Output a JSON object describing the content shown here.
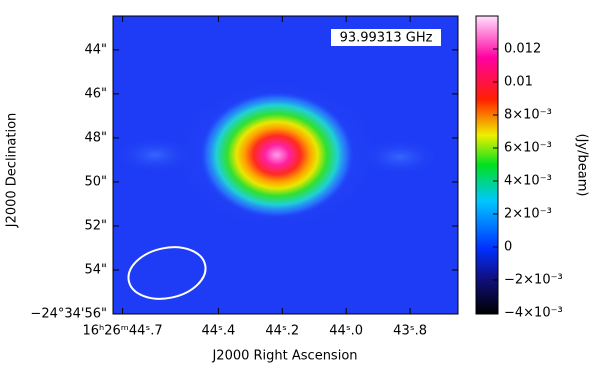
{
  "chart_data": {
    "type": "image",
    "annotation": "93.99313 GHz",
    "x_label": "J2000 Right Ascension",
    "y_label": "J2000 Declination",
    "xlim": [
      44.73,
      43.65
    ],
    "xticks": [
      {
        "value": 44.7,
        "label": "16ʰ26ᵐ44ˢ.7"
      },
      {
        "value": 44.4,
        "label": "44ˢ.4"
      },
      {
        "value": 44.2,
        "label": "44ˢ.2"
      },
      {
        "value": 44.0,
        "label": "44ˢ.0"
      },
      {
        "value": 43.8,
        "label": "43ˢ.8"
      }
    ],
    "ylim": [
      42.46,
      56
    ],
    "yticks": [
      {
        "value": 44,
        "label": "44\""
      },
      {
        "value": 46,
        "label": "46\""
      },
      {
        "value": 48,
        "label": "48\""
      },
      {
        "value": 50,
        "label": "50\""
      },
      {
        "value": 52,
        "label": "52\""
      },
      {
        "value": 54,
        "label": "54\""
      },
      {
        "value": 56,
        "label": "−24°34'56\""
      }
    ],
    "colorbar": {
      "label": "(Jy/beam)",
      "lim": [
        -0.00406,
        0.014
      ],
      "ticks": [
        {
          "value": -0.004,
          "label": "−4×10⁻³"
        },
        {
          "value": -0.002,
          "label": "−2×10⁻³"
        },
        0,
        {
          "value": 0.002,
          "label": "2×10⁻³"
        },
        {
          "value": 0.004,
          "label": "4×10⁻³"
        },
        {
          "value": 0.006,
          "label": "6×10⁻³"
        },
        {
          "value": 0.008,
          "label": "8×10⁻³"
        },
        0.01,
        0.012
      ]
    }
  }
}
